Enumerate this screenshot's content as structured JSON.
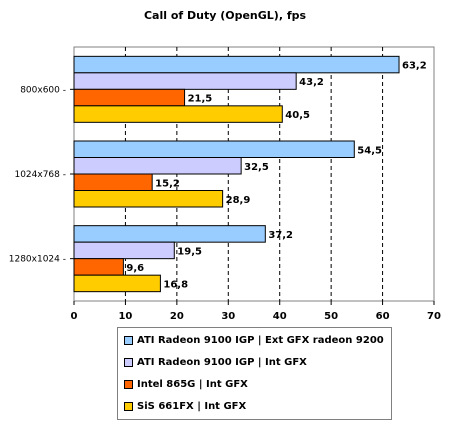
{
  "chart_data": {
    "type": "bar",
    "orientation": "horizontal",
    "title": "Call of Duty (OpenGL),  fps",
    "categories": [
      "800x600",
      "1024x768",
      "1280x1024"
    ],
    "series": [
      {
        "name": "ATI Radeon 9100 IGP | Ext GFX radeon 9200",
        "color": "#99CCFF",
        "values": [
          63.2,
          54.5,
          37.2
        ],
        "labels": [
          "63,2",
          "54,5",
          "37,2"
        ]
      },
      {
        "name": "ATI Radeon 9100 IGP | Int GFX",
        "color": "#CCCCFF",
        "values": [
          43.2,
          32.5,
          19.5
        ],
        "labels": [
          "43,2",
          "32,5",
          "19,5"
        ]
      },
      {
        "name": "Intel 865G | Int GFX",
        "color": "#FF6600",
        "values": [
          21.5,
          15.2,
          9.6
        ],
        "labels": [
          "21,5",
          "15,2",
          "9,6"
        ]
      },
      {
        "name": "SiS 661FX | Int GFX",
        "color": "#FFCC00",
        "values": [
          40.5,
          28.9,
          16.8
        ],
        "labels": [
          "40,5",
          "28,9",
          "16,8"
        ]
      }
    ],
    "xlim": [
      0,
      70
    ],
    "xticks": [
      0,
      10,
      20,
      30,
      40,
      50,
      60,
      70
    ],
    "grid": "vertical-dashed",
    "legend_position": "bottom"
  }
}
